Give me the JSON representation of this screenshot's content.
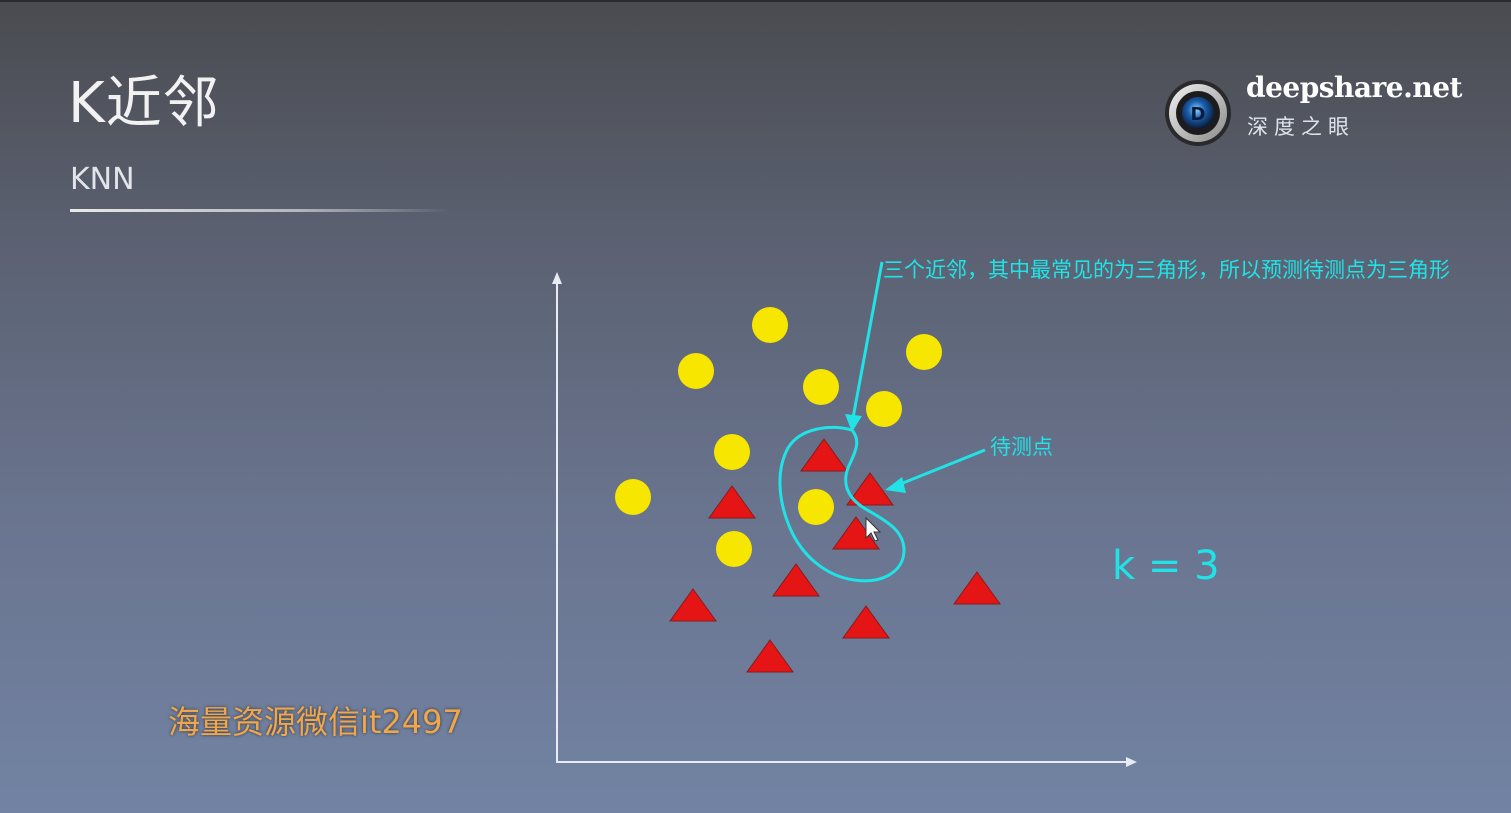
{
  "slide": {
    "title": "K近邻",
    "subtitle": "KNN"
  },
  "logo": {
    "name": "deepshare.net",
    "chinese_name": "深度之眼",
    "badge_letter": "D"
  },
  "watermark": "海量资源微信it2497",
  "annotations": {
    "neighbors_note": "三个近邻，其中最常见的为三角形，所以预测待测点为三角形",
    "test_point_label": "待测点",
    "k_label": "k = 3"
  },
  "colors": {
    "circle_class": "#f7e600",
    "triangle_class": "#e51515",
    "annotation": "#1fe3e6",
    "axis": "#e8ecf2"
  },
  "icons": {
    "cursor": "mouse-pointer-icon"
  }
}
